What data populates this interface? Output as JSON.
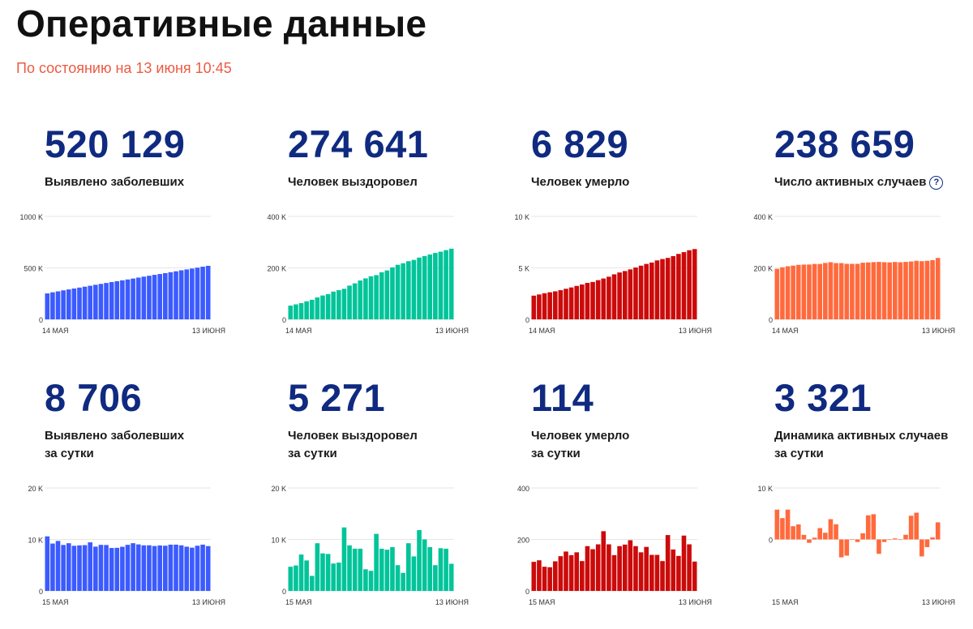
{
  "page": {
    "title": "Оперативные данные",
    "subtitle": "По состоянию на 13 июня 10:45"
  },
  "help_icon": "question-circle-icon",
  "colors": {
    "blue": "#3b5bff",
    "green": "#00c49a",
    "red": "#cc0a0a",
    "orange": "#ff6a3d",
    "navy": "#0f2a80",
    "subtitle": "#ec5b43"
  },
  "panels": [
    {
      "value": "520 129",
      "label1": "Выявлено заболевших",
      "label2": "",
      "color": "#3b5bff"
    },
    {
      "value": "274 641",
      "label1": "Человек выздоровел",
      "label2": "",
      "color": "#00c49a"
    },
    {
      "value": "6 829",
      "label1": "Человек умерло",
      "label2": "",
      "color": "#cc0a0a"
    },
    {
      "value": "238 659",
      "label1": "Число активных случаев",
      "label2": "",
      "color": "#ff6a3d"
    },
    {
      "value": "8 706",
      "label1": "Выявлено заболевших",
      "label2": "за сутки",
      "color": "#3b5bff"
    },
    {
      "value": "5 271",
      "label1": "Человек выздоровел",
      "label2": "за сутки",
      "color": "#00c49a"
    },
    {
      "value": "114",
      "label1": "Человек умерло",
      "label2": "за сутки",
      "color": "#cc0a0a"
    },
    {
      "value": "3 321",
      "label1": "Динамика активных случаев",
      "label2": "за сутки",
      "color": "#ff6a3d"
    }
  ],
  "chart_data": [
    {
      "type": "bar",
      "ymin": 0,
      "ymax": 1000000,
      "yticks": [
        {
          "v": 0,
          "t": "0"
        },
        {
          "v": 500000,
          "t": "500 K"
        },
        {
          "v": 1000000,
          "t": "1000 K"
        }
      ],
      "xlabels": [
        "14 МАЯ",
        "13 ИЮНЯ"
      ],
      "values": [
        252245,
        262843,
        272043,
        281752,
        290678,
        299941,
        308705,
        317554,
        326448,
        335882,
        344481,
        353427,
        362342,
        370680,
        379051,
        387623,
        396575,
        405843,
        414878,
        423741,
        432277,
        440538,
        449256,
        458102,
        467073,
        476658,
        485253,
        493657,
        502436,
        511423,
        520129
      ]
    },
    {
      "type": "bar",
      "ymin": 0,
      "ymax": 400000,
      "yticks": [
        {
          "v": 0,
          "t": "0"
        },
        {
          "v": 200000,
          "t": "200 K"
        },
        {
          "v": 400000,
          "t": "400 K"
        }
      ],
      "xlabels": [
        "14 МАЯ",
        "13 ИЮНЯ"
      ],
      "values": [
        53530,
        58226,
        63166,
        70209,
        76130,
        85392,
        92681,
        98200,
        107936,
        113299,
        118798,
        131129,
        139979,
        150993,
        159257,
        167469,
        171883,
        183000,
        190000,
        202000,
        212000,
        218000,
        226000,
        231000,
        240000,
        246000,
        252000,
        258000,
        263000,
        269000,
        274641
      ]
    },
    {
      "type": "bar",
      "ymin": 0,
      "ymax": 10000,
      "yticks": [
        {
          "v": 0,
          "t": "0"
        },
        {
          "v": 5000,
          "t": "5 K"
        },
        {
          "v": 10000,
          "t": "10 K"
        }
      ],
      "xlabels": [
        "14 МАЯ",
        "13 ИЮНЯ"
      ],
      "values": [
        2305,
        2418,
        2537,
        2631,
        2722,
        2837,
        2972,
        3099,
        3249,
        3388,
        3541,
        3633,
        3807,
        3968,
        4142,
        4374,
        4555,
        4693,
        4855,
        5037,
        5215,
        5384,
        5520,
        5725,
        5859,
        5971,
        6142,
        6358,
        6532,
        6715,
        6829
      ]
    },
    {
      "type": "bar",
      "ymin": 0,
      "ymax": 400000,
      "yticks": [
        {
          "v": 0,
          "t": "0"
        },
        {
          "v": 200000,
          "t": "200 K"
        },
        {
          "v": 400000,
          "t": "400 K"
        }
      ],
      "xlabels": [
        "14 МАЯ",
        "13 ИЮНЯ"
      ],
      "values": [
        196410,
        202199,
        206340,
        208912,
        211826,
        212712,
        213052,
        215255,
        215263,
        219195,
        222142,
        218665,
        218556,
        215719,
        215652,
        215780,
        220137,
        221150,
        222400,
        223300,
        222200,
        221200,
        223000,
        221800,
        223300,
        224900,
        227500,
        226000,
        227600,
        230200,
        238659
      ]
    },
    {
      "type": "bar",
      "ymin": 0,
      "ymax": 20000,
      "yticks": [
        {
          "v": 0,
          "t": "0"
        },
        {
          "v": 10000,
          "t": "10 K"
        },
        {
          "v": 20000,
          "t": "20 K"
        }
      ],
      "xlabels": [
        "15 МАЯ",
        "13 ИЮНЯ"
      ],
      "values": [
        10598,
        9200,
        9709,
        8926,
        9263,
        8764,
        8849,
        8894,
        9434,
        8599,
        8946,
        8915,
        8338,
        8371,
        8572,
        8952,
        9268,
        9035,
        8855,
        8863,
        8726,
        8831,
        8779,
        8985,
        8987,
        8858,
        8595,
        8404,
        8779,
        8987,
        8706
      ]
    },
    {
      "type": "bar",
      "ymin": 0,
      "ymax": 20000,
      "yticks": [
        {
          "v": 0,
          "t": "0"
        },
        {
          "v": 10000,
          "t": "10 K"
        },
        {
          "v": 20000,
          "t": "20 K"
        }
      ],
      "xlabels": [
        "15 МАЯ",
        "13 ИЮНЯ"
      ],
      "values": [
        4696,
        4940,
        7063,
        5921,
        2920,
        9262,
        7289,
        7175,
        5319,
        5500,
        12331,
        8850,
        8200,
        8200,
        4200,
        3900,
        11079,
        8200,
        8000,
        8500,
        5000,
        3500,
        9264,
        6700,
        11818,
        10000,
        8500,
        5000,
        8300,
        8200,
        5271
      ]
    },
    {
      "type": "bar",
      "ymin": 0,
      "ymax": 400,
      "yticks": [
        {
          "v": 0,
          "t": "0"
        },
        {
          "v": 200,
          "t": "200"
        },
        {
          "v": 400,
          "t": "400"
        }
      ],
      "xlabels": [
        "15 МАЯ",
        "13 ИЮНЯ"
      ],
      "values": [
        113,
        119,
        94,
        92,
        115,
        135,
        153,
        139,
        150,
        116,
        174,
        162,
        181,
        232,
        181,
        139,
        174,
        180,
        197,
        174,
        150,
        171,
        140,
        140,
        116,
        217,
        161,
        136,
        215,
        181,
        114
      ]
    },
    {
      "type": "bar",
      "ymin": -10000,
      "ymax": 10000,
      "yticks": [
        {
          "v": 0,
          "t": "0"
        },
        {
          "v": 10000,
          "t": "10 K"
        }
      ],
      "xlabels": [
        "15 МАЯ",
        "13 ИЮНЯ"
      ],
      "values": [
        5790,
        4141,
        5789,
        2572,
        2914,
        886,
        -660,
        340,
        2203,
        1300,
        3932,
        2947,
        -3477,
        -3150,
        -100,
        -500,
        1200,
        4687,
        4900,
        -2800,
        -500,
        -100,
        200,
        -100,
        900,
        4600,
        5200,
        -3300,
        -1500,
        400,
        3321
      ]
    }
  ]
}
